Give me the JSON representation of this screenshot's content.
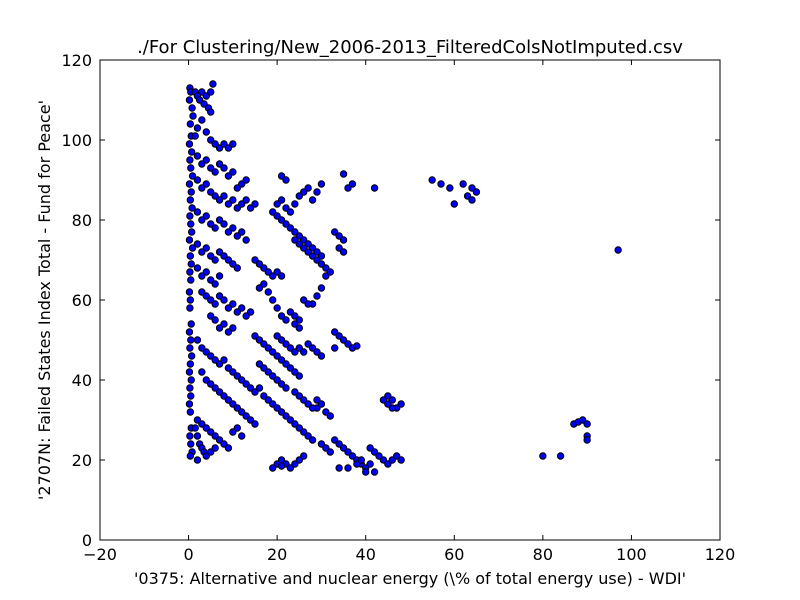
{
  "chart_data": {
    "type": "scatter",
    "title": "./For Clustering/New_2006-2013_FilteredColsNotImputed.csv",
    "xlabel": "'0375: Alternative and nuclear energy  (\\% of total energy use) - WDI'",
    "ylabel": "'2707N: Failed States Index Total - Fund for Peace'",
    "xlim": [
      -20,
      120
    ],
    "ylim": [
      0,
      120
    ],
    "xticks": [
      "−20",
      "0",
      "20",
      "40",
      "60",
      "80",
      "100",
      "120"
    ],
    "yticks": [
      "0",
      "20",
      "40",
      "60",
      "80",
      "100",
      "120"
    ],
    "grid": false,
    "marker_color": "#0000ff",
    "points": [
      [
        0.3,
        113
      ],
      [
        0.5,
        112
      ],
      [
        0.2,
        110
      ],
      [
        0.8,
        108
      ],
      [
        1,
        106
      ],
      [
        0.4,
        104
      ],
      [
        0.6,
        101
      ],
      [
        0.2,
        99
      ],
      [
        0.7,
        97
      ],
      [
        0.3,
        95
      ],
      [
        0.5,
        93
      ],
      [
        0.9,
        91
      ],
      [
        0.2,
        89
      ],
      [
        0.6,
        87
      ],
      [
        0.4,
        85
      ],
      [
        0.8,
        83
      ],
      [
        0.3,
        81
      ],
      [
        0.5,
        79
      ],
      [
        0.7,
        77
      ],
      [
        0.2,
        75
      ],
      [
        0.9,
        73
      ],
      [
        0.4,
        71
      ],
      [
        0.6,
        69
      ],
      [
        0.3,
        67
      ],
      [
        0.5,
        65
      ],
      [
        0.2,
        62
      ],
      [
        0.4,
        60
      ],
      [
        0.3,
        58
      ],
      [
        0.6,
        54
      ],
      [
        0.2,
        52
      ],
      [
        0.5,
        50
      ],
      [
        0.3,
        48
      ],
      [
        0.7,
        46
      ],
      [
        0.4,
        44
      ],
      [
        0.2,
        42
      ],
      [
        0.6,
        40
      ],
      [
        0.3,
        38
      ],
      [
        0.5,
        36
      ],
      [
        0.2,
        34
      ],
      [
        0.4,
        32
      ],
      [
        0.6,
        28
      ],
      [
        0.3,
        26
      ],
      [
        0.5,
        24
      ],
      [
        0.8,
        22
      ],
      [
        0.4,
        21
      ],
      [
        1.5,
        112
      ],
      [
        2,
        111
      ],
      [
        2.5,
        110
      ],
      [
        3,
        112
      ],
      [
        3.5,
        109
      ],
      [
        4,
        111
      ],
      [
        4.5,
        108
      ],
      [
        5,
        107
      ],
      [
        5.5,
        114
      ],
      [
        5,
        112
      ],
      [
        3,
        105
      ],
      [
        2,
        103
      ],
      [
        1.5,
        101
      ],
      [
        4,
        102
      ],
      [
        5,
        100
      ],
      [
        6,
        99
      ],
      [
        7,
        98
      ],
      [
        8,
        99
      ],
      [
        9,
        98
      ],
      [
        10,
        99
      ],
      [
        2,
        96
      ],
      [
        3,
        94
      ],
      [
        4,
        95
      ],
      [
        5,
        93
      ],
      [
        6,
        92
      ],
      [
        7,
        94
      ],
      [
        8,
        93
      ],
      [
        9,
        91
      ],
      [
        10,
        92
      ],
      [
        2,
        90
      ],
      [
        3,
        88
      ],
      [
        4,
        89
      ],
      [
        5,
        87
      ],
      [
        6,
        86
      ],
      [
        7,
        85
      ],
      [
        8,
        86
      ],
      [
        9,
        84
      ],
      [
        10,
        85
      ],
      [
        11,
        83
      ],
      [
        12,
        84
      ],
      [
        13,
        85
      ],
      [
        14,
        83
      ],
      [
        15,
        84
      ],
      [
        11,
        88
      ],
      [
        12,
        89
      ],
      [
        13,
        90
      ],
      [
        2,
        82
      ],
      [
        3,
        80
      ],
      [
        4,
        81
      ],
      [
        5,
        79
      ],
      [
        6,
        78
      ],
      [
        7,
        80
      ],
      [
        8,
        79
      ],
      [
        9,
        77
      ],
      [
        10,
        78
      ],
      [
        11,
        76
      ],
      [
        12,
        77
      ],
      [
        13,
        75
      ],
      [
        2,
        74
      ],
      [
        3,
        72
      ],
      [
        4,
        73
      ],
      [
        5,
        71
      ],
      [
        6,
        70
      ],
      [
        7,
        72
      ],
      [
        8,
        71
      ],
      [
        9,
        70
      ],
      [
        10,
        69
      ],
      [
        11,
        68
      ],
      [
        2,
        68
      ],
      [
        3,
        66
      ],
      [
        4,
        67
      ],
      [
        5,
        65
      ],
      [
        6,
        64
      ],
      [
        7,
        66
      ],
      [
        3,
        62
      ],
      [
        4,
        61
      ],
      [
        5,
        60
      ],
      [
        6,
        59
      ],
      [
        7,
        61
      ],
      [
        8,
        60
      ],
      [
        9,
        58
      ],
      [
        10,
        59
      ],
      [
        11,
        57
      ],
      [
        12,
        58
      ],
      [
        13,
        56
      ],
      [
        14,
        57
      ],
      [
        5,
        56
      ],
      [
        6,
        55
      ],
      [
        7,
        53
      ],
      [
        8,
        54
      ],
      [
        9,
        52
      ],
      [
        10,
        53
      ],
      [
        2,
        50
      ],
      [
        3,
        48
      ],
      [
        4,
        47
      ],
      [
        5,
        46
      ],
      [
        6,
        45
      ],
      [
        7,
        44
      ],
      [
        8,
        45
      ],
      [
        9,
        43
      ],
      [
        10,
        42
      ],
      [
        11,
        41
      ],
      [
        12,
        40
      ],
      [
        13,
        39
      ],
      [
        14,
        38
      ],
      [
        15,
        37
      ],
      [
        16,
        38
      ],
      [
        17,
        36
      ],
      [
        18,
        35
      ],
      [
        3,
        42
      ],
      [
        4,
        40
      ],
      [
        5,
        39
      ],
      [
        6,
        38
      ],
      [
        7,
        37
      ],
      [
        8,
        36
      ],
      [
        9,
        35
      ],
      [
        10,
        34
      ],
      [
        11,
        33
      ],
      [
        12,
        32
      ],
      [
        13,
        31
      ],
      [
        14,
        30
      ],
      [
        15,
        29
      ],
      [
        2,
        30
      ],
      [
        3,
        29
      ],
      [
        4,
        28
      ],
      [
        5,
        27
      ],
      [
        6,
        26
      ],
      [
        7,
        25
      ],
      [
        8,
        24
      ],
      [
        9,
        23
      ],
      [
        10,
        27
      ],
      [
        11,
        28
      ],
      [
        12,
        26
      ],
      [
        1.5,
        28
      ],
      [
        2,
        26
      ],
      [
        2.5,
        24
      ],
      [
        3,
        23
      ],
      [
        3.5,
        22
      ],
      [
        2,
        20
      ],
      [
        4,
        21
      ],
      [
        5,
        22
      ],
      [
        6,
        23
      ],
      [
        15,
        70
      ],
      [
        16,
        69
      ],
      [
        17,
        68
      ],
      [
        18,
        67
      ],
      [
        19,
        66
      ],
      [
        20,
        67
      ],
      [
        21,
        66
      ],
      [
        16,
        63
      ],
      [
        17,
        64
      ],
      [
        18,
        62
      ],
      [
        19,
        60
      ],
      [
        20,
        58
      ],
      [
        21,
        56
      ],
      [
        22,
        55
      ],
      [
        23,
        57
      ],
      [
        24,
        56
      ],
      [
        25,
        55
      ],
      [
        15,
        51
      ],
      [
        16,
        50
      ],
      [
        17,
        49
      ],
      [
        18,
        48
      ],
      [
        19,
        47
      ],
      [
        20,
        46
      ],
      [
        21,
        45
      ],
      [
        22,
        44
      ],
      [
        23,
        43
      ],
      [
        24,
        42
      ],
      [
        25,
        41
      ],
      [
        16,
        44
      ],
      [
        17,
        43
      ],
      [
        18,
        42
      ],
      [
        19,
        41
      ],
      [
        20,
        40
      ],
      [
        21,
        39
      ],
      [
        22,
        38
      ],
      [
        20,
        84
      ],
      [
        21,
        85
      ],
      [
        22,
        83
      ],
      [
        23,
        82
      ],
      [
        24,
        84
      ],
      [
        25,
        86
      ],
      [
        26,
        87
      ],
      [
        27,
        88
      ],
      [
        28,
        85
      ],
      [
        29,
        87
      ],
      [
        30,
        89
      ],
      [
        19,
        82
      ],
      [
        20,
        81
      ],
      [
        21,
        80
      ],
      [
        22,
        79
      ],
      [
        23,
        78
      ],
      [
        24,
        77
      ],
      [
        25,
        76
      ],
      [
        26,
        75
      ],
      [
        27,
        74
      ],
      [
        28,
        73
      ],
      [
        29,
        72
      ],
      [
        30,
        71
      ],
      [
        21,
        91
      ],
      [
        22,
        90
      ],
      [
        24,
        75
      ],
      [
        25,
        74
      ],
      [
        26,
        73
      ],
      [
        27,
        72
      ],
      [
        28,
        71
      ],
      [
        29,
        70
      ],
      [
        30,
        69
      ],
      [
        31,
        68
      ],
      [
        32,
        67
      ],
      [
        33,
        77
      ],
      [
        34,
        76
      ],
      [
        35,
        75
      ],
      [
        34,
        73
      ],
      [
        35,
        72
      ],
      [
        36,
        88
      ],
      [
        37,
        89
      ],
      [
        35,
        91.5
      ],
      [
        42,
        88
      ],
      [
        31,
        66
      ],
      [
        28,
        59
      ],
      [
        29,
        61
      ],
      [
        30,
        63
      ],
      [
        26,
        60
      ],
      [
        27,
        59
      ],
      [
        24,
        54
      ],
      [
        25,
        53
      ],
      [
        20,
        51
      ],
      [
        21,
        50
      ],
      [
        22,
        49
      ],
      [
        23,
        48
      ],
      [
        24,
        47
      ],
      [
        25,
        48
      ],
      [
        26,
        47
      ],
      [
        27,
        49
      ],
      [
        28,
        48
      ],
      [
        29,
        47
      ],
      [
        30,
        46
      ],
      [
        33,
        52
      ],
      [
        34,
        51
      ],
      [
        35,
        50
      ],
      [
        36,
        49
      ],
      [
        37,
        48
      ],
      [
        38,
        48.5
      ],
      [
        33,
        48
      ],
      [
        19,
        34
      ],
      [
        20,
        33
      ],
      [
        21,
        32
      ],
      [
        22,
        31
      ],
      [
        23,
        30
      ],
      [
        24,
        29
      ],
      [
        25,
        28
      ],
      [
        26,
        27
      ],
      [
        27,
        26
      ],
      [
        28,
        25
      ],
      [
        29,
        33
      ],
      [
        30,
        34
      ],
      [
        31,
        32
      ],
      [
        32,
        31
      ],
      [
        24,
        37
      ],
      [
        25,
        36
      ],
      [
        26,
        35
      ],
      [
        27,
        34
      ],
      [
        28,
        33
      ],
      [
        29,
        35
      ],
      [
        30,
        24
      ],
      [
        31,
        23
      ],
      [
        32,
        22
      ],
      [
        33,
        25
      ],
      [
        34,
        24
      ],
      [
        35,
        23
      ],
      [
        36,
        22
      ],
      [
        37,
        21
      ],
      [
        38,
        20
      ],
      [
        39,
        19
      ],
      [
        40,
        18
      ],
      [
        41,
        23
      ],
      [
        42,
        22
      ],
      [
        43,
        21
      ],
      [
        44,
        20
      ],
      [
        45,
        19
      ],
      [
        46,
        20
      ],
      [
        47,
        21
      ],
      [
        48,
        20
      ],
      [
        20,
        19
      ],
      [
        21,
        20
      ],
      [
        22,
        19
      ],
      [
        23,
        18
      ],
      [
        24,
        19
      ],
      [
        25,
        20
      ],
      [
        26,
        21
      ],
      [
        19,
        18
      ],
      [
        21,
        18.5
      ],
      [
        36,
        18
      ],
      [
        38,
        19
      ],
      [
        39,
        20
      ],
      [
        40,
        17
      ],
      [
        41,
        19
      ],
      [
        42,
        17
      ],
      [
        34,
        18
      ],
      [
        44,
        35
      ],
      [
        45,
        34
      ],
      [
        46,
        35
      ],
      [
        47,
        33
      ],
      [
        48,
        34
      ],
      [
        45,
        36
      ],
      [
        46,
        33
      ],
      [
        55,
        90
      ],
      [
        57,
        89
      ],
      [
        59,
        88
      ],
      [
        60,
        84
      ],
      [
        62,
        89
      ],
      [
        63,
        86
      ],
      [
        64,
        88
      ],
      [
        65,
        87
      ],
      [
        64,
        85
      ],
      [
        97,
        72.5
      ],
      [
        80,
        21
      ],
      [
        84,
        21
      ],
      [
        87,
        29
      ],
      [
        88,
        29.5
      ],
      [
        89,
        30
      ],
      [
        90,
        29
      ],
      [
        90,
        26
      ],
      [
        90,
        25
      ]
    ]
  }
}
